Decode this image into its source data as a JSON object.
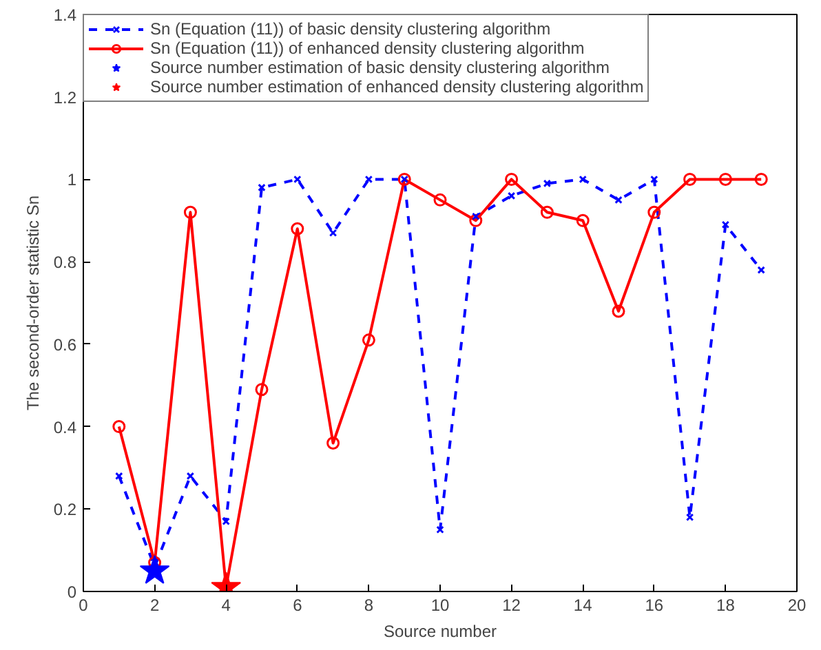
{
  "chart_data": {
    "type": "line",
    "xlabel": "Source number",
    "ylabel": "The second-order statistic Sn",
    "x": [
      1,
      2,
      3,
      4,
      5,
      6,
      7,
      8,
      9,
      10,
      11,
      12,
      13,
      14,
      15,
      16,
      17,
      18,
      19
    ],
    "xlim": [
      0,
      20
    ],
    "xticks": [
      0,
      2,
      4,
      6,
      8,
      10,
      12,
      14,
      16,
      18,
      20
    ],
    "ylim": [
      0,
      1.4
    ],
    "yticks": [
      0,
      0.2,
      0.4,
      0.6,
      0.8,
      1,
      1.2,
      1.4
    ],
    "grid": false,
    "legend": "top left",
    "series": [
      {
        "name": "Sn (Equation (11)) of basic density clustering algorithm",
        "color": "#0000ff",
        "marker": "cross",
        "line_style": "dashed",
        "values": [
          0.28,
          0.06,
          0.28,
          0.17,
          0.98,
          1.0,
          0.87,
          1.0,
          1.0,
          0.15,
          0.91,
          0.96,
          0.99,
          1.0,
          0.95,
          1.0,
          0.18,
          0.89,
          0.78
        ]
      },
      {
        "name": "Sn (Equation (11)) of enhanced density clustering algorithm",
        "color": "#ff0000",
        "marker": "circle",
        "line_style": "solid",
        "values": [
          0.4,
          0.07,
          0.92,
          0.01,
          0.49,
          0.88,
          0.36,
          0.61,
          1.0,
          0.95,
          0.9,
          1.0,
          0.92,
          0.9,
          0.68,
          0.92,
          1.0,
          1.0,
          1.0
        ]
      },
      {
        "name": "Source number estimation of basic density clustering algorithm",
        "type": "scatter",
        "color": "#0000ff",
        "marker": "star",
        "x": [
          2
        ],
        "values": [
          0.05
        ]
      },
      {
        "name": "Source number estimation of enhanced density clustering algorithm",
        "type": "scatter",
        "color": "#ff0000",
        "marker": "star",
        "x": [
          4
        ],
        "values": [
          0.01
        ]
      }
    ]
  }
}
